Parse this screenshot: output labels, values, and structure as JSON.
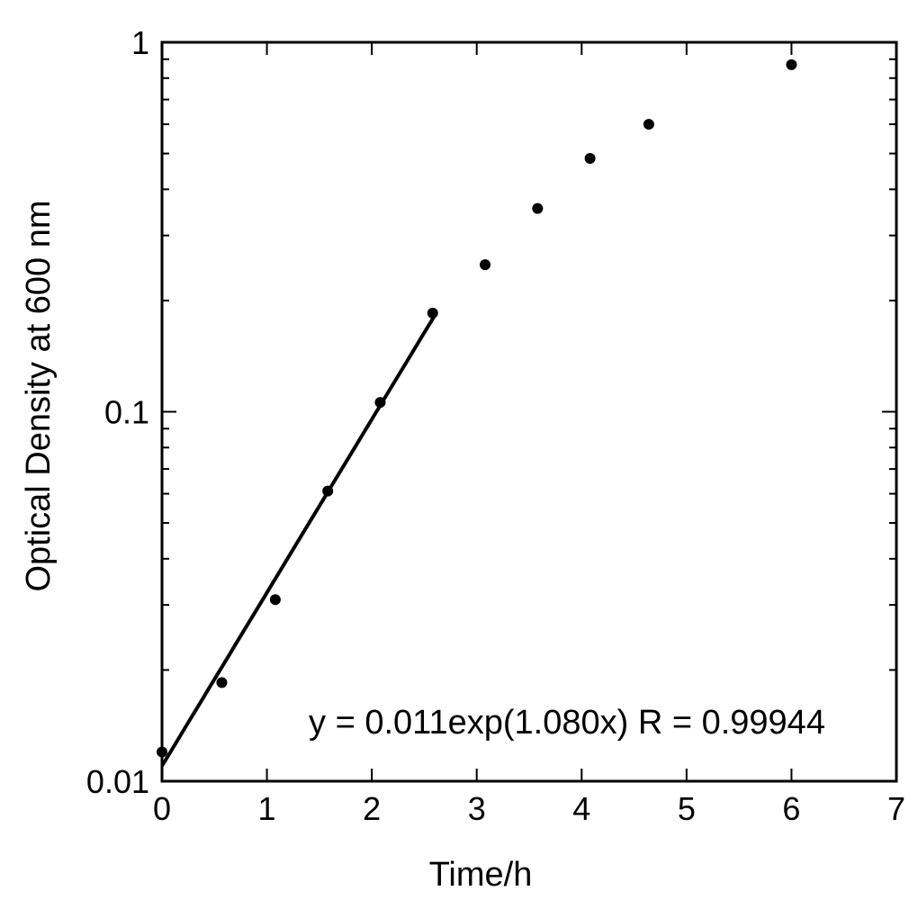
{
  "chart_data": {
    "type": "scatter",
    "xlabel": "Time/h",
    "ylabel": "Optical Density at 600 nm",
    "xlim": [
      0,
      7
    ],
    "ylim": [
      0.01,
      1
    ],
    "yscale": "log",
    "grid": false,
    "x_ticks": [
      0,
      1,
      2,
      3,
      4,
      5,
      6,
      7
    ],
    "x_tick_labels": [
      "0",
      "1",
      "2",
      "3",
      "4",
      "5",
      "6",
      "7"
    ],
    "y_ticks": [
      0.01,
      0.1,
      1
    ],
    "y_tick_labels": [
      "0.01",
      "0.1",
      "1"
    ],
    "series": [
      {
        "x": [
          0.0,
          0.57,
          1.08,
          1.58,
          2.08,
          2.58,
          3.08,
          3.58,
          4.08,
          4.64,
          6.0
        ],
        "y": [
          0.012,
          0.0185,
          0.031,
          0.061,
          0.106,
          0.185,
          0.25,
          0.355,
          0.485,
          0.6,
          0.87
        ]
      }
    ],
    "fit": {
      "a": 0.011,
      "b": 1.08,
      "x_range": [
        0,
        2.6
      ],
      "equation_label": "y = 0.011exp(1.080x) R = 0.99944"
    }
  }
}
